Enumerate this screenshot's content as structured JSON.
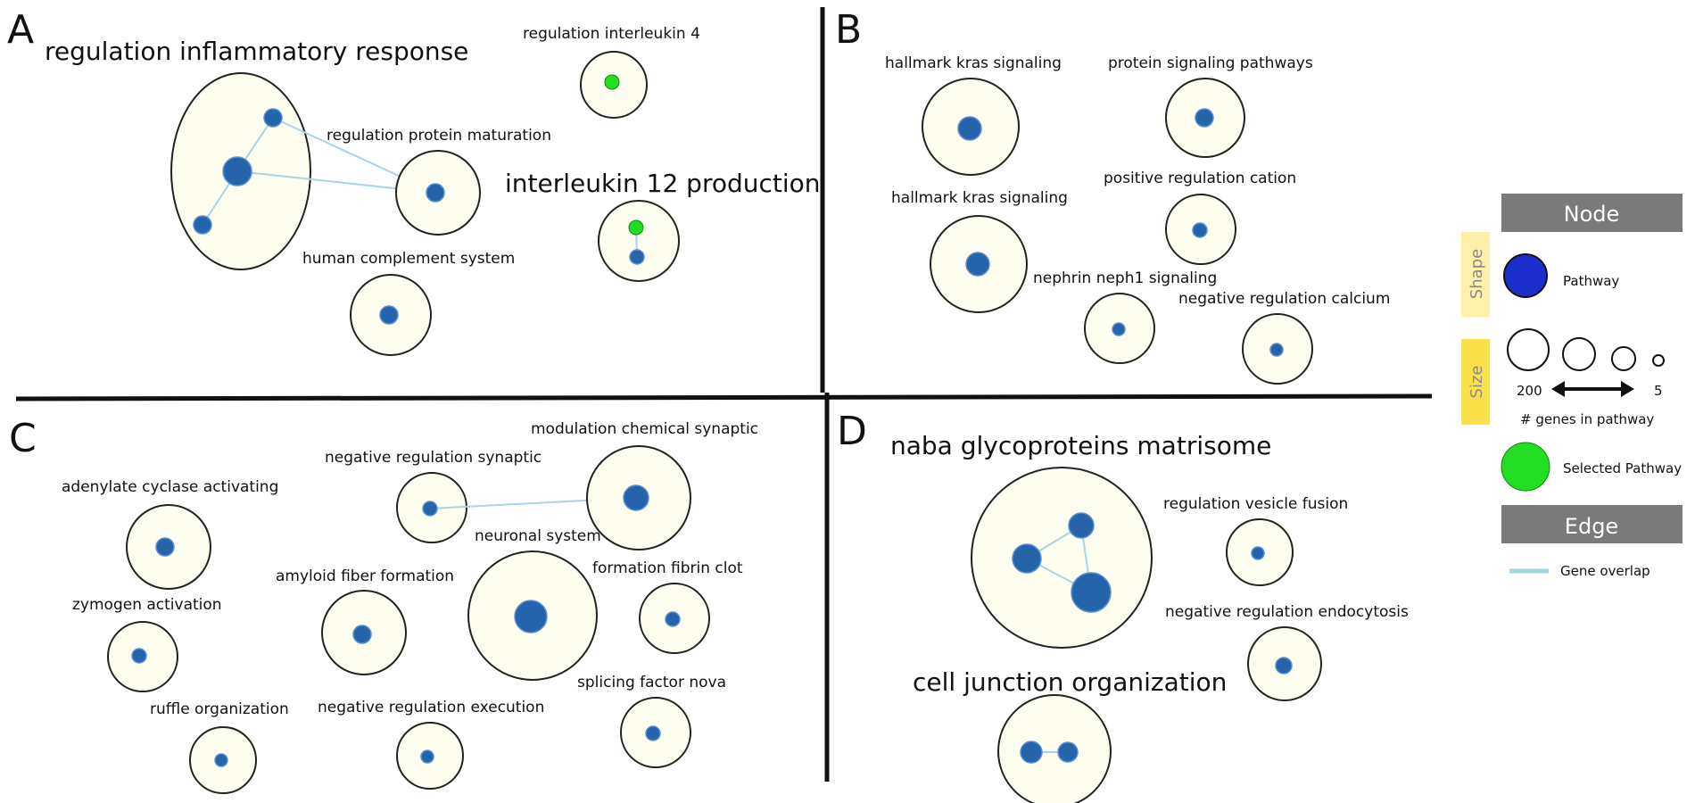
{
  "colors": {
    "cluster_fill": "#fdfdf0",
    "cluster_stroke": "#222222",
    "node": "#2563ab",
    "selected": "#22dd22",
    "edge": "#a9d4e6",
    "legend_header": "#7a7a7a",
    "legend_shape_tab": "#fdf0a8",
    "legend_size_tab": "#fbe04b",
    "legend_pathway": "#1c2fcc"
  },
  "panels": {
    "A": {
      "letter": "A",
      "clusters": [
        {
          "label": "regulation inflammatory response",
          "big": true
        },
        {
          "label": "regulation protein maturation"
        },
        {
          "label": "human complement system"
        },
        {
          "label": "regulation interleukin 4"
        },
        {
          "label": "interleukin 12 production",
          "big": true
        }
      ]
    },
    "B": {
      "letter": "B",
      "clusters": [
        {
          "label": "hallmark kras signaling"
        },
        {
          "label": "hallmark kras signaling"
        },
        {
          "label": "protein signaling pathways"
        },
        {
          "label": "positive regulation cation"
        },
        {
          "label": "nephrin neph1 signaling"
        },
        {
          "label": "negative regulation calcium"
        }
      ]
    },
    "C": {
      "letter": "C",
      "clusters": [
        {
          "label": "adenylate cyclase activating"
        },
        {
          "label": "zymogen activation"
        },
        {
          "label": "ruffle organization"
        },
        {
          "label": "negative regulation synaptic"
        },
        {
          "label": "modulation chemical synaptic"
        },
        {
          "label": "amyloid fiber formation"
        },
        {
          "label": "neuronal system"
        },
        {
          "label": "formation fibrin clot"
        },
        {
          "label": "negative regulation execution"
        },
        {
          "label": "splicing factor nova"
        }
      ]
    },
    "D": {
      "letter": "D",
      "clusters": [
        {
          "label": "naba glycoproteins matrisome",
          "big": true
        },
        {
          "label": "regulation vesicle fusion"
        },
        {
          "label": "negative regulation endocytosis"
        },
        {
          "label": "cell junction organization",
          "big": true
        }
      ]
    }
  },
  "legend": {
    "node_header": "Node",
    "shape_tab": "Shape",
    "pathway_label": "Pathway",
    "size_tab": "Size",
    "size_max": "200",
    "size_min": "5",
    "size_caption": "# genes in pathway",
    "selected_label": "Selected Pathway",
    "edge_header": "Edge",
    "edge_label": "Gene overlap"
  }
}
